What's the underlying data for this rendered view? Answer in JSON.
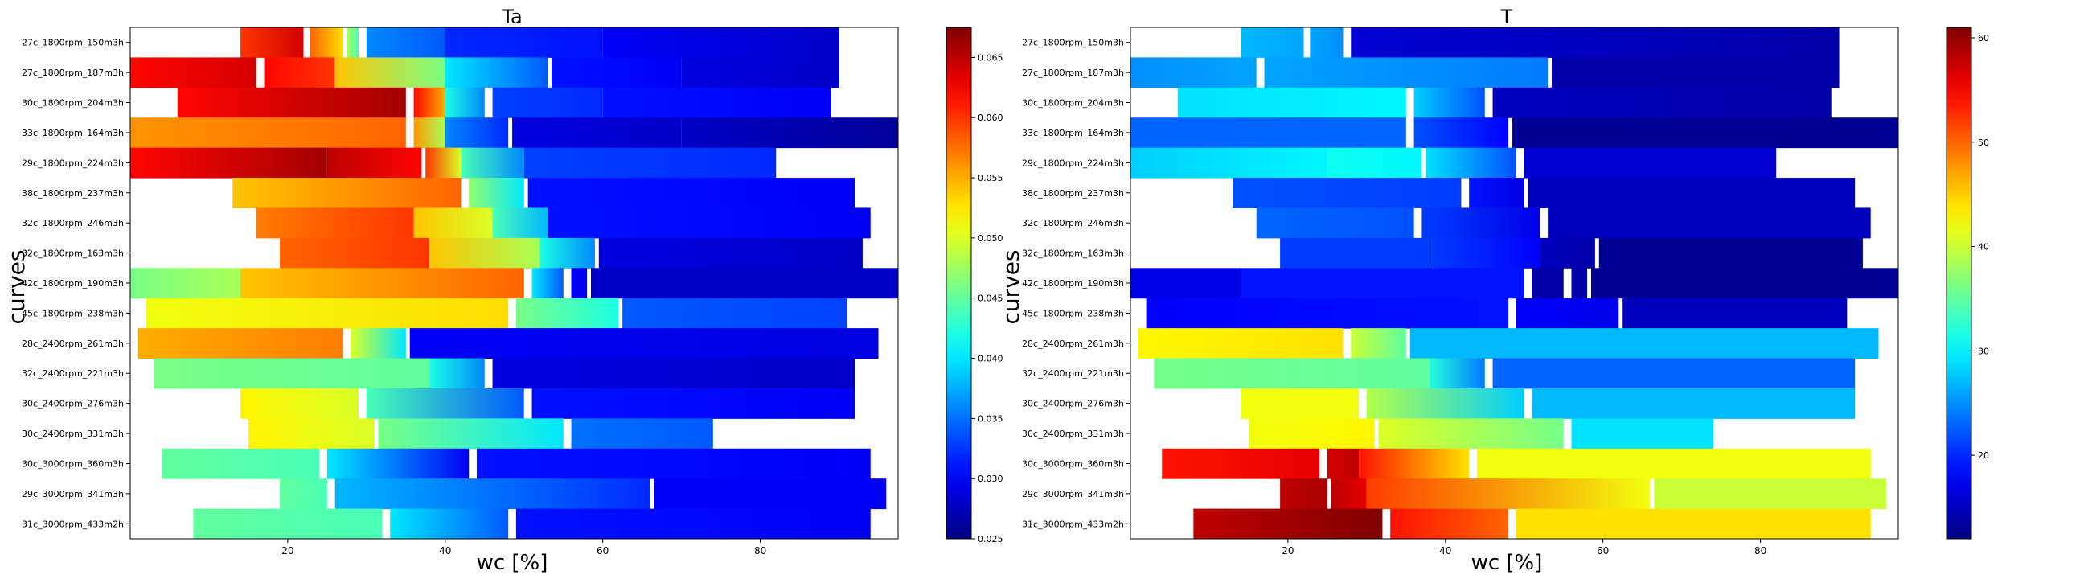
{
  "chart_data": [
    {
      "type": "heatmap",
      "title": "Ta",
      "xlabel": "wc [%]",
      "ylabel": "curves",
      "xlim": [
        0,
        97.5
      ],
      "xticks": [
        20,
        40,
        60,
        80
      ],
      "colorbar": {
        "min": 0.025,
        "max": 0.0675,
        "ticks": [
          "0.025",
          "0.030",
          "0.035",
          "0.040",
          "0.045",
          "0.050",
          "0.055",
          "0.060",
          "0.065"
        ]
      },
      "curves": [
        {
          "label": "27c_1800rpm_150m3h",
          "segments": [
            [
              14,
              22,
              0.06,
              0.064
            ],
            [
              22.8,
              27,
              0.058,
              0.053
            ],
            [
              27.5,
              29,
              0.048,
              0.044
            ],
            [
              30,
              40,
              0.036,
              0.034
            ],
            [
              40,
              60,
              0.032,
              0.031
            ],
            [
              60,
              90,
              0.03,
              0.028
            ]
          ]
        },
        {
          "label": "27c_1800rpm_187m3h",
          "segments": [
            [
              0,
              16,
              0.062,
              0.064
            ],
            [
              17,
              26,
              0.062,
              0.06
            ],
            [
              26,
              40,
              0.054,
              0.046
            ],
            [
              40,
              53,
              0.04,
              0.034
            ],
            [
              53.5,
              70,
              0.031,
              0.03
            ],
            [
              70,
              90,
              0.029,
              0.028
            ]
          ]
        },
        {
          "label": "30c_1800rpm_204m3h",
          "segments": [
            [
              6,
              35,
              0.062,
              0.066
            ],
            [
              36,
              40,
              0.062,
              0.055
            ],
            [
              40,
              45,
              0.042,
              0.036
            ],
            [
              46,
              60,
              0.033,
              0.032
            ],
            [
              60,
              89,
              0.031,
              0.03
            ]
          ]
        },
        {
          "label": "33c_1800rpm_164m3h",
          "segments": [
            [
              0,
              35,
              0.056,
              0.058
            ],
            [
              36,
              40,
              0.056,
              0.048
            ],
            [
              40,
              48,
              0.036,
              0.032
            ],
            [
              48.5,
              70,
              0.029,
              0.028
            ],
            [
              70,
              97.5,
              0.028,
              0.026
            ]
          ]
        },
        {
          "label": "29c_1800rpm_224m3h",
          "segments": [
            [
              0,
              25,
              0.062,
              0.066
            ],
            [
              25,
              37,
              0.065,
              0.062
            ],
            [
              37.5,
              42,
              0.06,
              0.05
            ],
            [
              42,
              50,
              0.044,
              0.036
            ],
            [
              50,
              82,
              0.033,
              0.032
            ]
          ]
        },
        {
          "label": "38c_1800rpm_237m3h",
          "segments": [
            [
              13,
              42,
              0.054,
              0.058
            ],
            [
              43,
              50,
              0.047,
              0.04
            ],
            [
              50.5,
              92,
              0.031,
              0.03
            ]
          ]
        },
        {
          "label": "32c_1800rpm_246m3h",
          "segments": [
            [
              16,
              36,
              0.057,
              0.06
            ],
            [
              36,
              46,
              0.054,
              0.05
            ],
            [
              46,
              53,
              0.044,
              0.038
            ],
            [
              53,
              94,
              0.031,
              0.03
            ]
          ]
        },
        {
          "label": "32c_1800rpm_163m3h",
          "segments": [
            [
              19,
              38,
              0.058,
              0.06
            ],
            [
              38,
              52,
              0.054,
              0.048
            ],
            [
              52,
              59,
              0.042,
              0.036
            ],
            [
              59.5,
              93,
              0.029,
              0.028
            ]
          ]
        },
        {
          "label": "42c_1800rpm_190m3h",
          "segments": [
            [
              0,
              14,
              0.046,
              0.048
            ],
            [
              14,
              50,
              0.054,
              0.058
            ],
            [
              51,
              55,
              0.04,
              0.034
            ],
            [
              56,
              58,
              0.03,
              0.03
            ],
            [
              58.5,
              97.5,
              0.028,
              0.028
            ]
          ]
        },
        {
          "label": "45c_1800rpm_238m3h",
          "segments": [
            [
              2,
              48,
              0.051,
              0.053
            ],
            [
              49,
              62,
              0.046,
              0.042
            ],
            [
              62.5,
              91,
              0.034,
              0.033
            ]
          ]
        },
        {
          "label": "28c_2400rpm_261m3h",
          "segments": [
            [
              1,
              27,
              0.055,
              0.057
            ],
            [
              28,
              35,
              0.05,
              0.04
            ],
            [
              35.5,
              95,
              0.03,
              0.029
            ]
          ]
        },
        {
          "label": "32c_2400rpm_221m3h",
          "segments": [
            [
              3,
              38,
              0.046,
              0.045
            ],
            [
              38,
              45,
              0.042,
              0.036
            ],
            [
              46,
              92,
              0.029,
              0.028
            ]
          ]
        },
        {
          "label": "30c_2400rpm_276m3h",
          "segments": [
            [
              14,
              29,
              0.052,
              0.05
            ],
            [
              30,
              50,
              0.044,
              0.034
            ],
            [
              51,
              92,
              0.031,
              0.03
            ]
          ]
        },
        {
          "label": "30c_2400rpm_331m3h",
          "segments": [
            [
              15,
              31,
              0.052,
              0.05
            ],
            [
              31.5,
              55,
              0.046,
              0.04
            ],
            [
              56,
              74,
              0.035,
              0.034
            ]
          ]
        },
        {
          "label": "30c_3000rpm_360m3h",
          "segments": [
            [
              4,
              24,
              0.045,
              0.044
            ],
            [
              25,
              43,
              0.04,
              0.03
            ],
            [
              44,
              94,
              0.031,
              0.03
            ]
          ]
        },
        {
          "label": "29c_3000rpm_341m3h",
          "segments": [
            [
              19,
              25,
              0.045,
              0.044
            ],
            [
              26,
              66,
              0.038,
              0.032
            ],
            [
              66.5,
              96,
              0.03,
              0.03
            ]
          ]
        },
        {
          "label": "31c_3000rpm_433m2h",
          "segments": [
            [
              8,
              32,
              0.045,
              0.044
            ],
            [
              33,
              48,
              0.04,
              0.034
            ],
            [
              49,
              94,
              0.031,
              0.03
            ]
          ]
        }
      ]
    },
    {
      "type": "heatmap",
      "title": "T",
      "xlabel": "wc [%]",
      "ylabel": "curves",
      "xlim": [
        0,
        97.5
      ],
      "xticks": [
        20,
        40,
        60,
        80
      ],
      "colorbar": {
        "min": 12,
        "max": 61,
        "ticks": [
          "20",
          "30",
          "40",
          "50",
          "60"
        ]
      },
      "curves": [
        {
          "label": "27c_1800rpm_150m3h",
          "segments": [
            [
              14,
              22,
              27,
              26
            ],
            [
              22.8,
              27,
              26,
              25
            ],
            [
              28,
              90,
              16,
              14
            ]
          ]
        },
        {
          "label": "27c_1800rpm_187m3h",
          "segments": [
            [
              0,
              16,
              25,
              26
            ],
            [
              17,
              53,
              26,
              24
            ],
            [
              53.5,
              90,
              14,
              14
            ]
          ]
        },
        {
          "label": "30c_1800rpm_204m3h",
          "segments": [
            [
              6,
              35,
              29,
              30
            ],
            [
              36,
              45,
              28,
              22
            ],
            [
              46,
              89,
              15,
              14
            ]
          ]
        },
        {
          "label": "33c_1800rpm_164m3h",
          "segments": [
            [
              0,
              35,
              23,
              23
            ],
            [
              36,
              48,
              22,
              18
            ],
            [
              48.5,
              97.5,
              13,
              13
            ]
          ]
        },
        {
          "label": "29c_1800rpm_224m3h",
          "segments": [
            [
              0,
              25,
              28,
              30
            ],
            [
              25,
              37,
              31,
              30
            ],
            [
              37.5,
              49,
              29,
              22
            ],
            [
              50,
              82,
              16,
              16
            ]
          ]
        },
        {
          "label": "38c_1800rpm_237m3h",
          "segments": [
            [
              13,
              42,
              22,
              21
            ],
            [
              43,
              50,
              19,
              17
            ],
            [
              50.5,
              92,
              15,
              15
            ]
          ]
        },
        {
          "label": "32c_1800rpm_246m3h",
          "segments": [
            [
              16,
              36,
              23,
              22
            ],
            [
              37,
              52,
              21,
              17
            ],
            [
              53,
              94,
              15,
              15
            ]
          ]
        },
        {
          "label": "32c_1800rpm_163m3h",
          "segments": [
            [
              19,
              38,
              21,
              21
            ],
            [
              38,
              52,
              21,
              18
            ],
            [
              52,
              59,
              15,
              14
            ],
            [
              59.5,
              93,
              13,
              13
            ]
          ]
        },
        {
          "label": "42c_1800rpm_190m3h",
          "segments": [
            [
              0,
              14,
              17,
              17
            ],
            [
              14,
              50,
              19,
              19
            ],
            [
              51,
              55,
              14,
              14
            ],
            [
              56,
              58,
              14,
              14
            ],
            [
              58.5,
              97.5,
              13,
              13
            ]
          ]
        },
        {
          "label": "45c_1800rpm_238m3h",
          "segments": [
            [
              2,
              48,
              18,
              19
            ],
            [
              49,
              62,
              18,
              17
            ],
            [
              62.5,
              91,
              15,
              15
            ]
          ]
        },
        {
          "label": "28c_2400rpm_261m3h",
          "segments": [
            [
              1,
              27,
              43,
              44
            ],
            [
              28,
              35,
              40,
              35
            ],
            [
              35.5,
              95,
              27,
              27
            ]
          ]
        },
        {
          "label": "32c_2400rpm_221m3h",
          "segments": [
            [
              3,
              38,
              36,
              35
            ],
            [
              38,
              45,
              32,
              24
            ],
            [
              46,
              92,
              23,
              23
            ]
          ]
        },
        {
          "label": "30c_2400rpm_276m3h",
          "segments": [
            [
              14,
              29,
              42,
              42
            ],
            [
              30,
              50,
              39,
              28
            ],
            [
              51,
              92,
              27,
              27
            ]
          ]
        },
        {
          "label": "30c_2400rpm_331m3h",
          "segments": [
            [
              15,
              31,
              42,
              43
            ],
            [
              31.5,
              55,
              41,
              36
            ],
            [
              56,
              74,
              29,
              29
            ]
          ]
        },
        {
          "label": "30c_3000rpm_360m3h",
          "segments": [
            [
              4,
              24,
              54,
              56
            ],
            [
              25,
              29,
              57,
              58
            ],
            [
              29,
              43,
              54,
              44
            ],
            [
              44,
              94,
              42,
              42
            ]
          ]
        },
        {
          "label": "29c_3000rpm_341m3h",
          "segments": [
            [
              19,
              25,
              58,
              59
            ],
            [
              25.5,
              30,
              58,
              56
            ],
            [
              30,
              66,
              52,
              42
            ],
            [
              66.5,
              96,
              40,
              40
            ]
          ]
        },
        {
          "label": "31c_3000rpm_433m2h",
          "segments": [
            [
              8,
              32,
              58,
              61
            ],
            [
              33,
              48,
              54,
              50
            ],
            [
              49,
              94,
              44,
              44
            ]
          ]
        }
      ]
    }
  ]
}
